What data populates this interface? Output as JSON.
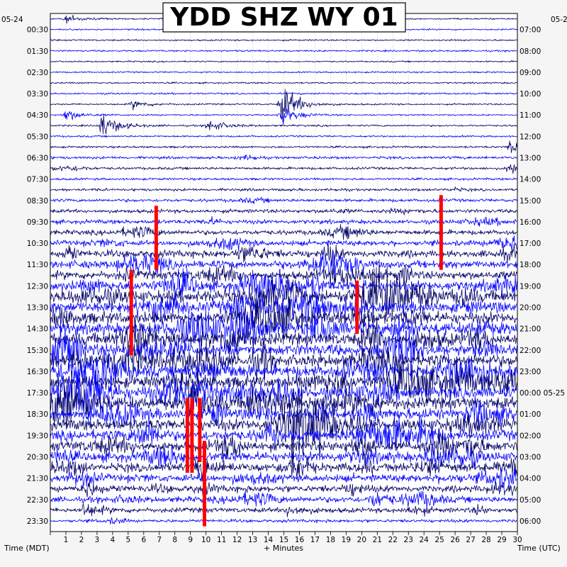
{
  "chart_data": {
    "type": "helicorder",
    "title": "YDD SHZ WY 01",
    "xlabel": "+ Minutes",
    "left_axis_title": "Time (MDT)",
    "right_axis_title": "Time (UTC)",
    "start_date_left": "05-24",
    "start_date_right": "05-2",
    "x_ticks": [
      "1",
      "2",
      "3",
      "4",
      "5",
      "6",
      "7",
      "8",
      "9",
      "10",
      "11",
      "12",
      "13",
      "14",
      "15",
      "16",
      "17",
      "18",
      "19",
      "20",
      "21",
      "22",
      "23",
      "24",
      "25",
      "26",
      "27",
      "28",
      "29",
      "30"
    ],
    "xlim": [
      0,
      30
    ],
    "left_row_labels": [
      "00:30",
      "01:30",
      "02:30",
      "03:30",
      "04:30",
      "05:30",
      "06:30",
      "07:30",
      "08:30",
      "09:30",
      "10:30",
      "11:30",
      "12:30",
      "13:30",
      "14:30",
      "15:30",
      "16:30",
      "17:30",
      "18:30",
      "19:30",
      "20:30",
      "21:30",
      "22:30",
      "23:30"
    ],
    "right_row_labels": [
      "07:00",
      "08:00",
      "09:00",
      "10:00",
      "11:00",
      "12:00",
      "13:00",
      "14:00",
      "15:00",
      "16:00",
      "17:00",
      "18:00",
      "19:00",
      "20:00",
      "21:00",
      "22:00",
      "23:00",
      "00:00 05-25",
      "01:00",
      "02:00",
      "03:00",
      "04:00",
      "05:00",
      "06:00"
    ],
    "rows_per_hour": 2,
    "trace_colors": [
      "#000066",
      "#0000ff"
    ],
    "clip_color": "#ff0000",
    "activity_by_row": [
      0.05,
      0.05,
      0.06,
      0.07,
      0.05,
      0.05,
      0.06,
      0.08,
      0.06,
      0.05,
      0.08,
      0.08,
      0.1,
      0.15,
      0.15,
      0.12,
      0.15,
      0.2,
      0.25,
      0.3,
      0.35,
      0.4,
      0.55,
      0.6,
      0.65,
      0.8,
      1.0,
      0.95,
      0.95,
      1.0,
      1.0,
      1.0,
      1.0,
      1.0,
      1.0,
      1.0,
      1.0,
      0.9,
      0.95,
      0.85,
      0.8,
      0.8,
      0.7,
      0.6,
      0.5,
      0.45,
      0.35,
      0.2
    ],
    "events": [
      {
        "row": 0,
        "minute": 1.0,
        "amplitude": 0.3
      },
      {
        "row": 1,
        "minute": 13.8,
        "amplitude": 0.3
      },
      {
        "row": 8,
        "minute": 14.9,
        "amplitude": 1.6
      },
      {
        "row": 8,
        "minute": 5.3,
        "amplitude": 0.35
      },
      {
        "row": 9,
        "minute": 14.8,
        "amplitude": 0.8
      },
      {
        "row": 9,
        "minute": 1.0,
        "amplitude": 0.5
      },
      {
        "row": 10,
        "minute": 3.3,
        "amplitude": 1.0
      },
      {
        "row": 10,
        "minute": 10.2,
        "amplitude": 0.5
      },
      {
        "row": 12,
        "minute": 29.6,
        "amplitude": 0.9
      },
      {
        "row": 14,
        "minute": 29.5,
        "amplitude": 0.6
      },
      {
        "row": 36,
        "minute": 9.0,
        "amplitude": 1.8
      },
      {
        "row": 38,
        "minute": 15.4,
        "amplitude": 0.5
      },
      {
        "row": 42,
        "minute": 9.5,
        "amplitude": 0.7
      },
      {
        "row": 44,
        "minute": 2.2,
        "amplitude": 0.6
      },
      {
        "row": 45,
        "minute": 20.7,
        "amplitude": 0.7
      },
      {
        "row": 46,
        "minute": 2.2,
        "amplitude": 0.55
      },
      {
        "row": 46,
        "minute": 15.3,
        "amplitude": 0.45
      }
    ],
    "clipped_segments": [
      {
        "minute": 6.8,
        "from_row": 18,
        "to_row": 23
      },
      {
        "minute": 5.2,
        "from_row": 24,
        "to_row": 31
      },
      {
        "minute": 19.7,
        "from_row": 25,
        "to_row": 29
      },
      {
        "minute": 25.1,
        "from_row": 17,
        "to_row": 23
      },
      {
        "minute": 8.8,
        "from_row": 36,
        "to_row": 42
      },
      {
        "minute": 9.1,
        "from_row": 36,
        "to_row": 42
      },
      {
        "minute": 9.6,
        "from_row": 36,
        "to_row": 41
      },
      {
        "minute": 9.9,
        "from_row": 40,
        "to_row": 47
      }
    ]
  }
}
